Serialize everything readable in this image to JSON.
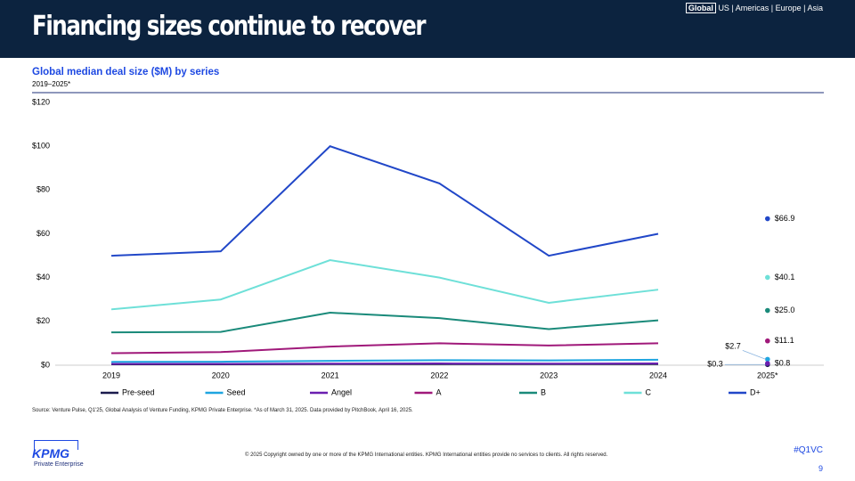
{
  "header": {
    "title": "Financing sizes continue to recover",
    "region_selected": "Global",
    "regions": "US | Americas | Europe | Asia"
  },
  "chart_data": {
    "type": "line",
    "title": "Global median deal size ($M) by series",
    "subtitle": "2019–2025*",
    "categories": [
      "2019",
      "2020",
      "2021",
      "2022",
      "2023",
      "2024",
      "2025*"
    ],
    "ylim": [
      0,
      120
    ],
    "yticks": [
      {
        "value": 0,
        "label": "$0"
      },
      {
        "value": 20,
        "label": "$20"
      },
      {
        "value": 40,
        "label": "$40"
      },
      {
        "value": 60,
        "label": "$60"
      },
      {
        "value": 80,
        "label": "$80"
      },
      {
        "value": 100,
        "label": "$100"
      },
      {
        "value": 120,
        "label": "$120"
      }
    ],
    "grid": false,
    "legend": "bottom",
    "series": [
      {
        "name": "Pre-seed",
        "color": "#1b1b4d",
        "values": [
          0.4,
          0.4,
          0.5,
          0.5,
          0.5,
          0.5,
          0.3
        ],
        "value_labels": [
          null,
          null,
          null,
          null,
          null,
          null,
          "$0.3"
        ]
      },
      {
        "name": "Seed",
        "color": "#1ea5e0",
        "values": [
          1.5,
          1.6,
          2.0,
          2.3,
          2.2,
          2.5,
          2.7
        ],
        "value_labels": [
          null,
          null,
          null,
          null,
          null,
          null,
          "$2.7"
        ]
      },
      {
        "name": "Angel",
        "color": "#6a1fb0",
        "values": [
          0.6,
          0.6,
          0.7,
          0.8,
          0.7,
          0.8,
          0.8
        ],
        "value_labels": [
          null,
          null,
          null,
          null,
          null,
          null,
          "$0.8"
        ]
      },
      {
        "name": "A",
        "color": "#a0197a",
        "values": [
          5.5,
          6,
          8.5,
          10,
          9,
          10,
          11.1
        ],
        "value_labels": [
          null,
          null,
          null,
          null,
          null,
          null,
          "$11.1"
        ]
      },
      {
        "name": "B",
        "color": "#1a8a7a",
        "values": [
          15,
          15.2,
          24,
          21.5,
          16.5,
          20.5,
          25.0
        ],
        "value_labels": [
          null,
          null,
          null,
          null,
          null,
          null,
          "$25.0"
        ]
      },
      {
        "name": "C",
        "color": "#6ee0d8",
        "values": [
          25.5,
          30,
          48,
          40,
          28.5,
          34.5,
          40.1
        ],
        "value_labels": [
          null,
          null,
          null,
          null,
          null,
          null,
          "$40.1"
        ]
      },
      {
        "name": "D+",
        "color": "#2147c8",
        "values": [
          50,
          52,
          100,
          83,
          50,
          60,
          66.9
        ],
        "value_labels": [
          null,
          null,
          null,
          null,
          null,
          null,
          "$66.9"
        ]
      }
    ]
  },
  "footer": {
    "source": "Source: Venture Pulse, Q1'25, Global Analysis of Venture Funding, KPMG Private Enterprise. *As of March 31, 2025. Data provided by PitchBook, April 16, 2025.",
    "copyright": "© 2025 Copyright owned by one or more of the KPMG International entities. KPMG International entities provide no services to clients. All rights reserved.",
    "hashtag": "#Q1VC",
    "page": "9",
    "brand": "KPMG",
    "brand_sub": "Private Enterprise"
  }
}
